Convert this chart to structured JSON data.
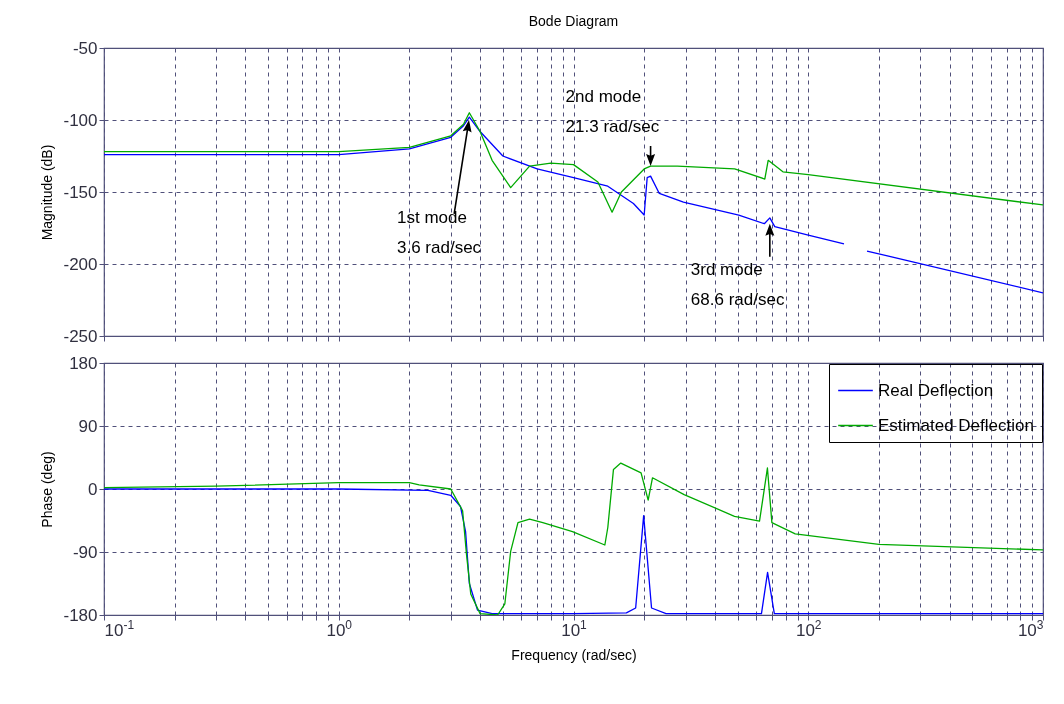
{
  "chart_data": [
    {
      "type": "line",
      "title": "Bode Diagram",
      "ylabel": "Magnitude (dB)",
      "log": "x",
      "grid": true,
      "tick_labels": "y",
      "xlim": [
        0.1,
        1000
      ],
      "xticks": [
        {
          "value": 0.1,
          "label": null
        },
        {
          "value": 0.2,
          "label": null
        },
        {
          "value": 0.3,
          "label": null
        },
        {
          "value": 0.4,
          "label": null
        },
        {
          "value": 0.5,
          "label": null
        },
        {
          "value": 0.6,
          "label": null
        },
        {
          "value": 0.7,
          "label": null
        },
        {
          "value": 0.8,
          "label": null
        },
        {
          "value": 0.9,
          "label": null
        },
        {
          "value": 1,
          "label": null
        },
        {
          "value": 2,
          "label": null
        },
        {
          "value": 3,
          "label": null
        },
        {
          "value": 4,
          "label": null
        },
        {
          "value": 5,
          "label": null
        },
        {
          "value": 6,
          "label": null
        },
        {
          "value": 7,
          "label": null
        },
        {
          "value": 8,
          "label": null
        },
        {
          "value": 9,
          "label": null
        },
        {
          "value": 10,
          "label": null
        },
        {
          "value": 20,
          "label": null
        },
        {
          "value": 30,
          "label": null
        },
        {
          "value": 40,
          "label": null
        },
        {
          "value": 50,
          "label": null
        },
        {
          "value": 60,
          "label": null
        },
        {
          "value": 70,
          "label": null
        },
        {
          "value": 80,
          "label": null
        },
        {
          "value": 90,
          "label": null
        },
        {
          "value": 100,
          "label": null
        },
        {
          "value": 200,
          "label": null
        },
        {
          "value": 300,
          "label": null
        },
        {
          "value": 400,
          "label": null
        },
        {
          "value": 500,
          "label": null
        },
        {
          "value": 600,
          "label": null
        },
        {
          "value": 700,
          "label": null
        },
        {
          "value": 800,
          "label": null
        },
        {
          "value": 900,
          "label": null
        },
        {
          "value": 1000,
          "label": null
        }
      ],
      "ylim": [
        -250,
        -50
      ],
      "yticks": [
        -250,
        -200,
        -150,
        -100,
        -50
      ],
      "annotations": [
        "1st mode\n3.6 rad/sec",
        {
          "text": "2nd mode\n21.3 rad/sec",
          "x": 21.3,
          "y": -132
        },
        {
          "text": "3rd mode\n68.6 rad/sec",
          "x": 68.6,
          "y": -172
        }
      ],
      "series": [
        {
          "color": "#0000ff",
          "x": [
            0.1,
            0.3,
            1,
            2,
            3,
            3.4,
            3.6,
            4,
            5,
            7,
            10,
            14,
            18,
            20,
            20.6,
            21.3,
            23.2,
            29.4,
            50.6,
            65,
            68.6,
            72,
            100,
            142,
            160,
            178,
            1000
          ],
          "values": [
            -124,
            -124,
            -124,
            -120,
            -112,
            -104,
            -98,
            -108,
            -125,
            -134,
            -140,
            -146,
            -158,
            -166,
            -140,
            -139,
            -151,
            -157,
            -166,
            -172,
            -168,
            -174,
            -180,
            -186,
            null,
            -191,
            -220
          ]
        },
        {
          "color": "#00aa00",
          "x": [
            0.1,
            1,
            2,
            3,
            3.4,
            3.6,
            4,
            4.5,
            5.4,
            6.5,
            8,
            10,
            12.7,
            14.6,
            16,
            20,
            21.3,
            27.7,
            48.6,
            65.3,
            67.5,
            78,
            100,
            1000
          ],
          "values": [
            -122,
            -122,
            -119,
            -111,
            -103,
            -95,
            -108,
            -128,
            -147,
            -132,
            -130,
            -131,
            -143,
            -164,
            -150,
            -134,
            -132,
            -132,
            -134,
            -141,
            -128,
            -136,
            -138,
            -159
          ]
        }
      ]
    },
    {
      "type": "line",
      "ylabel": "Phase (deg)",
      "xlabel": "Frequency  (rad/sec)",
      "log": "x",
      "grid": true,
      "legend": "top right",
      "xlim": [
        0.1,
        1000
      ],
      "xticks": [
        {
          "value": 0.1,
          "label": "10$^{-1}$"
        },
        {
          "value": 0.2,
          "label": null
        },
        {
          "value": 0.3,
          "label": null
        },
        {
          "value": 0.4,
          "label": null
        },
        {
          "value": 0.5,
          "label": null
        },
        {
          "value": 0.6,
          "label": null
        },
        {
          "value": 0.7,
          "label": null
        },
        {
          "value": 0.8,
          "label": null
        },
        {
          "value": 0.9,
          "label": null
        },
        {
          "value": 1,
          "label": "10$^{0}$"
        },
        {
          "value": 2,
          "label": null
        },
        {
          "value": 3,
          "label": null
        },
        {
          "value": 4,
          "label": null
        },
        {
          "value": 5,
          "label": null
        },
        {
          "value": 6,
          "label": null
        },
        {
          "value": 7,
          "label": null
        },
        {
          "value": 8,
          "label": null
        },
        {
          "value": 9,
          "label": null
        },
        {
          "value": 10,
          "label": "10$^{1}$"
        },
        {
          "value": 20,
          "label": null
        },
        {
          "value": 30,
          "label": null
        },
        {
          "value": 40,
          "label": null
        },
        {
          "value": 50,
          "label": null
        },
        {
          "value": 60,
          "label": null
        },
        {
          "value": 70,
          "label": null
        },
        {
          "value": 80,
          "label": null
        },
        {
          "value": 90,
          "label": null
        },
        {
          "value": 100,
          "label": "10$^{2}$"
        },
        {
          "value": 200,
          "label": null
        },
        {
          "value": 300,
          "label": null
        },
        {
          "value": 400,
          "label": null
        },
        {
          "value": 500,
          "label": null
        },
        {
          "value": 600,
          "label": null
        },
        {
          "value": 700,
          "label": null
        },
        {
          "value": 800,
          "label": null
        },
        {
          "value": 900,
          "label": null
        },
        {
          "value": 1000,
          "label": "10$^{3}$"
        }
      ],
      "ylim": [
        -180,
        180
      ],
      "yticks": [
        -180,
        -90,
        0,
        90,
        180
      ],
      "series": [
        {
          "name": "Real Deflection",
          "color": "#0000ff",
          "x": [
            0.1,
            1,
            2.4,
            3,
            3.3,
            3.47,
            3.6,
            3.9,
            4.5,
            10,
            16.8,
            18.4,
            19.9,
            21.5,
            24.8,
            63.2,
            67.1,
            71.7,
            100,
            1000
          ],
          "values": [
            0,
            0,
            -2,
            -9,
            -25,
            -61,
            -135,
            -173,
            -178,
            -178,
            -177,
            -170,
            -38,
            -170,
            -178,
            -178,
            -119,
            -178,
            -178,
            -178
          ]
        },
        {
          "name": "Estimated Deflection",
          "color": "#00aa00",
          "x": [
            0.1,
            0.3,
            1,
            2,
            2.2,
            3,
            3.37,
            3.5,
            3.65,
            4,
            4.75,
            5.1,
            5.4,
            5.8,
            6.5,
            7.4,
            9.9,
            13.6,
            14,
            14.8,
            15.9,
            19.4,
            20.8,
            21.7,
            29.6,
            48.5,
            62,
            67,
            70,
            88,
            200,
            1000
          ],
          "values": [
            2,
            4,
            9,
            9,
            6,
            0,
            -31,
            -93,
            -150,
            -178,
            -180,
            -164,
            -89,
            -48,
            -43,
            -48,
            -61,
            -80,
            -55,
            28,
            37,
            23,
            -16,
            16,
            -8,
            -39,
            -46,
            30,
            -48,
            -64,
            -79,
            -87
          ]
        }
      ]
    }
  ]
}
